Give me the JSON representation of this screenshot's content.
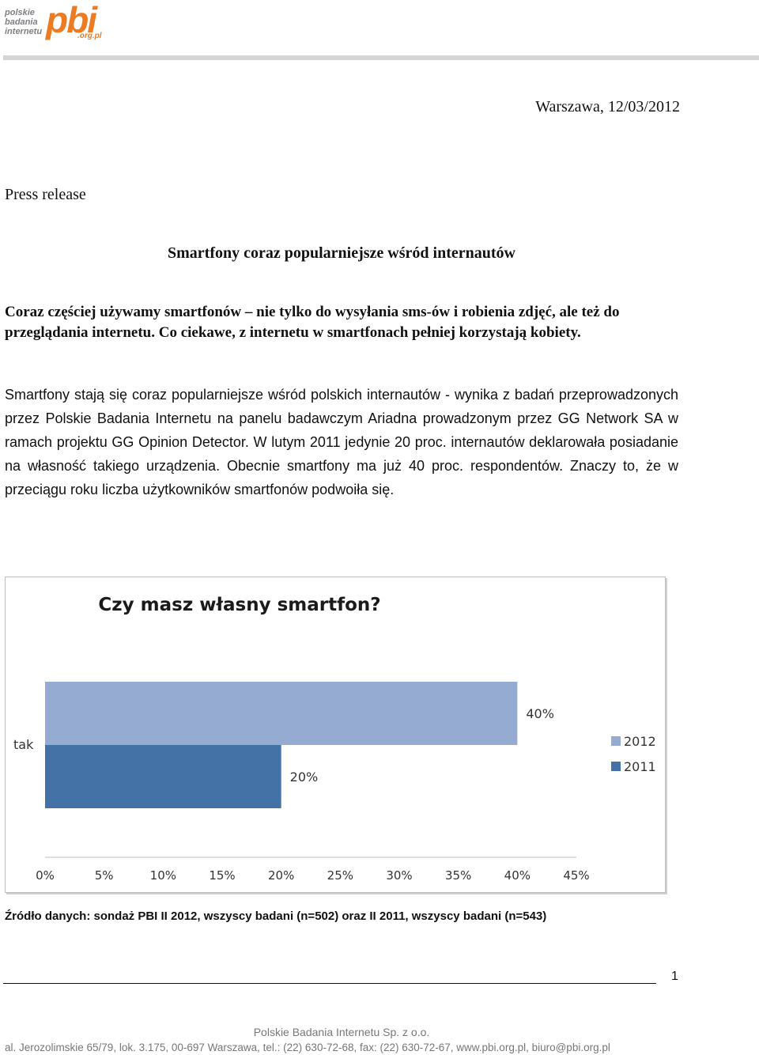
{
  "header": {
    "logo_small": [
      "polskie",
      "badania",
      "internetu"
    ],
    "logo_big": "pbi",
    "logo_sub": ".org.pl"
  },
  "document": {
    "date": "Warszawa, 12/03/2012",
    "label": "Press release",
    "headline": "Smartfony coraz popularniejsze wśród internautów",
    "lead": "Coraz częściej używamy smartfonów – nie tylko do wysyłania sms-ów i robienia zdjęć, ale też do przeglądania internetu. Co ciekawe, z internetu w smartfonach pełniej korzystają kobiety.",
    "body": "Smartfony stają się coraz popularniejsze wśród polskich internautów - wynika z badań przeprowadzonych przez Polskie Badania Internetu na panelu badawczym Ariadna prowadzonym przez GG Network SA w ramach projektu GG Opinion Detector. W lutym 2011 jedynie 20 proc. internautów deklarowała posiadanie na własność takiego urządzenia. Obecnie smartfony ma już 40 proc. respondentów. Znaczy to, że w przeciągu roku liczba użytkowników smartfonów podwoiła się.",
    "source": "Źródło danych: sondaż PBI II 2012, wszyscy badani (n=502) oraz II 2011, wszyscy badani (n=543)"
  },
  "chart_data": {
    "type": "bar",
    "orientation": "horizontal",
    "title": "Czy masz własny smartfon?",
    "categories": [
      "tak"
    ],
    "series": [
      {
        "name": "2012",
        "values": [
          40
        ],
        "color": "#95abd1",
        "label": "40%"
      },
      {
        "name": "2011",
        "values": [
          20
        ],
        "color": "#4471a6",
        "label": "20%"
      }
    ],
    "xlim": [
      0,
      45
    ],
    "xticks": [
      "0%",
      "5%",
      "10%",
      "15%",
      "20%",
      "25%",
      "30%",
      "35%",
      "40%",
      "45%"
    ],
    "grid": false,
    "legend": "right"
  },
  "footer": {
    "page": "1",
    "company": "Polskie Badania Internetu Sp. z o.o.",
    "address": "al. Jerozolimskie 65/79, lok. 3.175, 00-697 Warszawa, tel.: (22) 630-72-68, fax: (22) 630-72-67, www.pbi.org.pl, biuro@pbi.org.pl"
  },
  "colors": {
    "brand_orange": "#ec7b22",
    "logo_gray": "#7f7f83"
  }
}
